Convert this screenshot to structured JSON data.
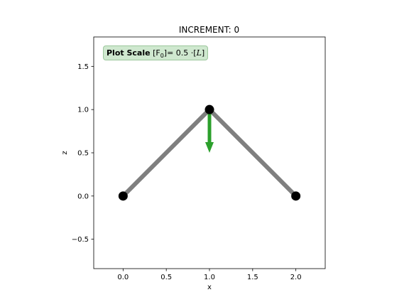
{
  "chart_data": {
    "type": "line",
    "title": "INCREMENT: 0",
    "xlabel": "x",
    "ylabel": "z",
    "xlim": [
      -0.34,
      2.34
    ],
    "ylim": [
      -0.84,
      1.84
    ],
    "xticks": [
      "0.0",
      "0.5",
      "1.0",
      "1.5",
      "2.0"
    ],
    "xtick_values": [
      0.0,
      0.5,
      1.0,
      1.5,
      2.0
    ],
    "yticks": [
      "−0.5",
      "0.0",
      "0.5",
      "1.0",
      "1.5"
    ],
    "ytick_values": [
      -0.5,
      0.0,
      0.5,
      1.0,
      1.5
    ],
    "grid": false,
    "elements": [
      {
        "from": [
          0.0,
          0.0
        ],
        "to": [
          1.0,
          1.0
        ]
      },
      {
        "from": [
          1.0,
          1.0
        ],
        "to": [
          2.0,
          0.0
        ]
      }
    ],
    "nodes": [
      {
        "x": 0.0,
        "z": 0.0
      },
      {
        "x": 1.0,
        "z": 1.0
      },
      {
        "x": 2.0,
        "z": 0.0
      }
    ],
    "load_arrow": {
      "x": 1.0,
      "z_start": 1.0,
      "z_end": 0.5
    },
    "colors": {
      "element": "#7f7f7f",
      "node": "#000000",
      "load": "#2ca02c"
    },
    "annotation": {
      "bold": "Plot Scale",
      "force_sym": "[F",
      "force_sub": "0",
      "mid": "]= 0.5 ·[",
      "length_sym": "L",
      "end": "]"
    }
  }
}
